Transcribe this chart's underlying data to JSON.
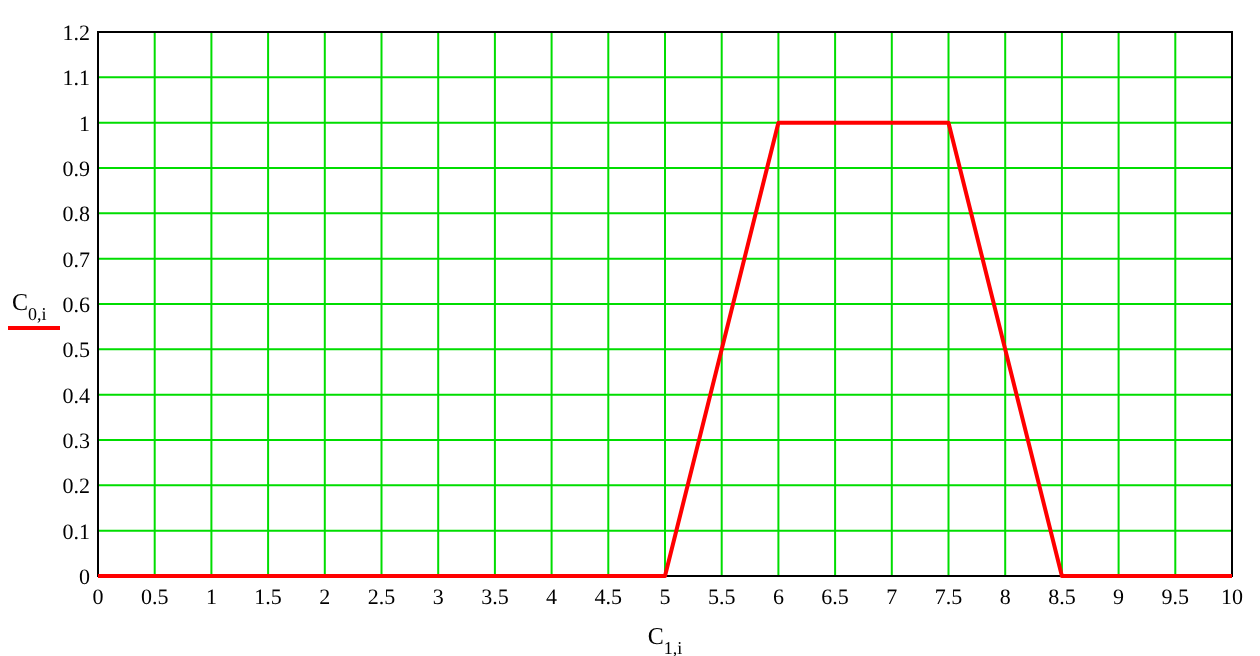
{
  "chart_data": {
    "type": "line",
    "xlabel": "C$_{1,i}$",
    "x": [
      0,
      5,
      6,
      7.5,
      8.5,
      10
    ],
    "series": [
      {
        "name": "C$_{0,i}$",
        "color": "#ff0000",
        "values": [
          0,
          0,
          1,
          1,
          0,
          0
        ]
      }
    ],
    "xlim": [
      0,
      10
    ],
    "xticks": [
      0,
      0.5,
      1,
      1.5,
      2,
      2.5,
      3,
      3.5,
      4,
      4.5,
      5,
      5.5,
      6,
      6.5,
      7,
      7.5,
      8,
      8.5,
      9,
      9.5,
      10
    ],
    "ylim": [
      0,
      1.2
    ],
    "yticks": [
      0,
      0.1,
      0.2,
      0.3,
      0.4,
      0.5,
      0.6,
      0.7,
      0.8,
      0.9,
      1,
      1.1,
      1.2
    ],
    "grid": true,
    "legend": "left",
    "line_style": "solid",
    "marker": "none"
  }
}
